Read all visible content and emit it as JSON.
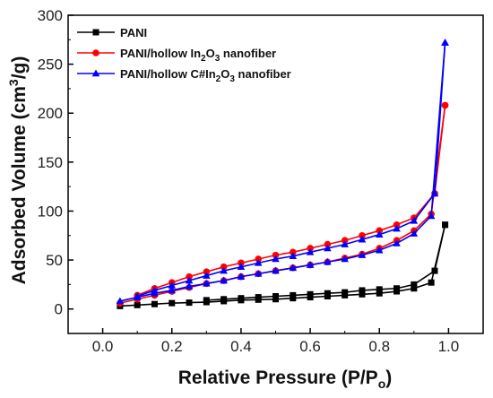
{
  "chart_data": {
    "type": "line",
    "title": "",
    "xlabel": "Relative Pressure (P/Po)",
    "xlabel_parts": {
      "main": "Relative Pressure (P/P",
      "sub": "o",
      "tail": ")"
    },
    "ylabel": "Adsorbed Volume (cm3/g)",
    "ylabel_parts": {
      "main": "Adsorbed Volume (cm",
      "sup": "3",
      "tail": "/g)"
    },
    "xlim": [
      -0.1,
      1.1
    ],
    "ylim": [
      -25,
      300
    ],
    "xticks": [
      "0.0",
      "0.2",
      "0.4",
      "0.6",
      "0.8",
      "1.0"
    ],
    "xtick_values": [
      0,
      0.2,
      0.4,
      0.6,
      0.8,
      1.0
    ],
    "yticks": [
      "0",
      "50",
      "100",
      "150",
      "200",
      "250",
      "300"
    ],
    "ytick_values": [
      0,
      50,
      100,
      150,
      200,
      250,
      300
    ],
    "grid": false,
    "legend_position": "top-left",
    "series": [
      {
        "name": "PANI",
        "legend_parts": [
          {
            "t": "PANI"
          }
        ],
        "color": "#000000",
        "marker": "square",
        "adsorption": {
          "x": [
            0.05,
            0.1,
            0.15,
            0.2,
            0.25,
            0.3,
            0.35,
            0.4,
            0.45,
            0.5,
            0.55,
            0.6,
            0.65,
            0.7,
            0.75,
            0.8,
            0.85,
            0.9,
            0.95,
            0.99
          ],
          "y": [
            3,
            4,
            5,
            6,
            6.5,
            7,
            8,
            9,
            9.5,
            10,
            11,
            12,
            13,
            14,
            15,
            16,
            18,
            21,
            27,
            86
          ]
        },
        "desorption": {
          "x": [
            0.99,
            0.96,
            0.9,
            0.85,
            0.8,
            0.75,
            0.7,
            0.65,
            0.6,
            0.55,
            0.5,
            0.45,
            0.4,
            0.35,
            0.3
          ],
          "y": [
            86,
            39,
            25,
            21,
            20,
            19,
            17,
            16,
            15,
            14,
            13,
            12,
            11,
            10,
            9
          ]
        }
      },
      {
        "name": "PANI/hollow In2O3 nanofiber",
        "legend_parts": [
          {
            "t": "PANI/hollow In"
          },
          {
            "t": "2",
            "sub": true
          },
          {
            "t": "O"
          },
          {
            "t": "3",
            "sub": true
          },
          {
            "t": " nanofiber"
          }
        ],
        "color": "#ff0000",
        "marker": "circle",
        "adsorption": {
          "x": [
            0.05,
            0.1,
            0.15,
            0.2,
            0.25,
            0.3,
            0.35,
            0.4,
            0.45,
            0.5,
            0.55,
            0.6,
            0.65,
            0.7,
            0.75,
            0.8,
            0.85,
            0.9,
            0.95,
            0.99
          ],
          "y": [
            6,
            10,
            14,
            18,
            22,
            26,
            29,
            33,
            36,
            39,
            42,
            45,
            48,
            52,
            56,
            62,
            70,
            80,
            97,
            208
          ]
        },
        "desorption": {
          "x": [
            0.99,
            0.96,
            0.9,
            0.85,
            0.8,
            0.75,
            0.7,
            0.65,
            0.6,
            0.55,
            0.5,
            0.45,
            0.4,
            0.35,
            0.3,
            0.25,
            0.2,
            0.15,
            0.1
          ],
          "y": [
            208,
            118,
            93,
            86,
            80,
            75,
            70,
            66,
            62,
            58,
            55,
            51,
            47,
            43,
            38,
            33,
            27,
            21,
            14
          ]
        }
      },
      {
        "name": "PANI/hollow C#In2O3 nanofiber",
        "legend_parts": [
          {
            "t": "PANI/hollow C#In"
          },
          {
            "t": "2",
            "sub": true
          },
          {
            "t": "O"
          },
          {
            "t": "3",
            "sub": true
          },
          {
            "t": " nanofiber"
          }
        ],
        "color": "#0000ff",
        "marker": "triangle",
        "adsorption": {
          "x": [
            0.05,
            0.1,
            0.15,
            0.2,
            0.25,
            0.3,
            0.35,
            0.4,
            0.45,
            0.5,
            0.55,
            0.6,
            0.65,
            0.7,
            0.75,
            0.8,
            0.85,
            0.9,
            0.95,
            0.99
          ],
          "y": [
            8,
            12,
            16,
            19,
            23,
            26,
            29,
            33,
            36,
            39,
            42,
            45,
            48,
            51,
            55,
            60,
            67,
            77,
            95,
            272
          ]
        },
        "desorption": {
          "x": [
            0.99,
            0.96,
            0.9,
            0.85,
            0.8,
            0.75,
            0.7,
            0.65,
            0.6,
            0.55,
            0.5,
            0.45,
            0.4,
            0.35,
            0.3,
            0.25,
            0.2,
            0.15,
            0.1
          ],
          "y": [
            272,
            118,
            90,
            82,
            76,
            71,
            66,
            62,
            58,
            54,
            51,
            47,
            43,
            39,
            34,
            29,
            24,
            19,
            13
          ]
        }
      }
    ]
  }
}
